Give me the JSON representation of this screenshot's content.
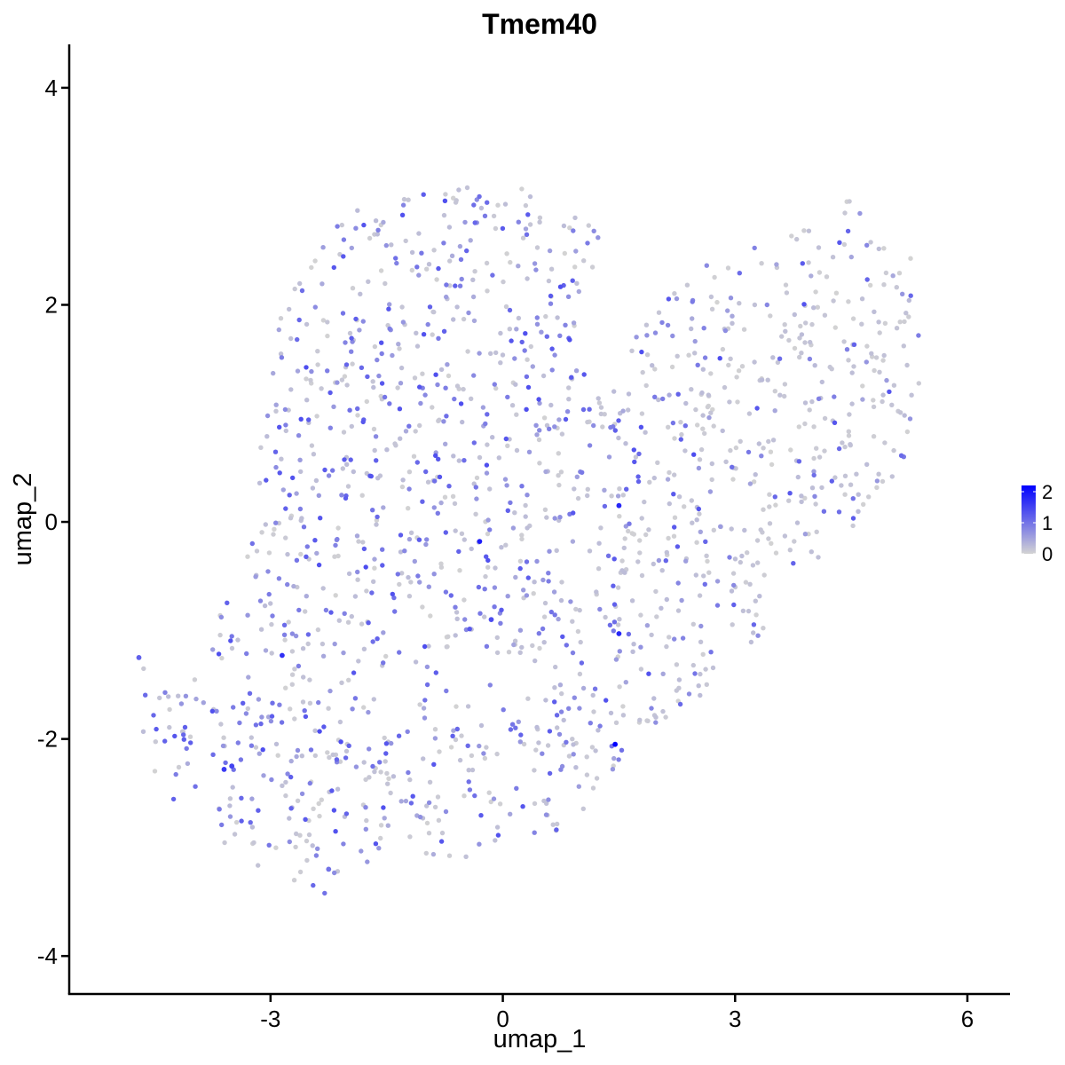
{
  "chart_data": {
    "type": "scatter",
    "title": "Tmem40",
    "xlabel": "umap_1",
    "ylabel": "umap_2",
    "xlim": [
      -5.6,
      6.55
    ],
    "ylim": [
      -4.35,
      4.4
    ],
    "x_ticks": [
      -3,
      0,
      3,
      6
    ],
    "y_ticks": [
      -4,
      -2,
      0,
      2,
      4
    ],
    "grid": false,
    "legend": {
      "position": "right",
      "min": 0,
      "max": 2.2,
      "ticks": [
        0,
        1,
        2
      ],
      "color_low": "#d3d3d3",
      "color_high": "#0000ff"
    },
    "highlighted_points": [
      {
        "x": 1.45,
        "y": -2.05,
        "value": 2.2
      },
      {
        "x": -0.3,
        "y": -0.18,
        "value": 1.9
      },
      {
        "x": 1.5,
        "y": 0.15,
        "value": 1.8
      },
      {
        "x": 1.5,
        "y": -1.03,
        "value": 1.8
      },
      {
        "x": -2.85,
        "y": -1.23,
        "value": 1.7
      },
      {
        "x": -3.6,
        "y": -2.28,
        "value": 1.6
      },
      {
        "x": -3.5,
        "y": -2.25,
        "value": 1.5
      },
      {
        "x": -0.15,
        "y": -0.9,
        "value": 1.4
      },
      {
        "x": -4.7,
        "y": -1.25,
        "value": 1.2
      },
      {
        "x": -2.25,
        "y": -3.2,
        "value": 1.0
      }
    ],
    "cloud": {
      "n_points": 1650,
      "polygon": [
        [
          -4.95,
          -1.15
        ],
        [
          -4.3,
          -1.55
        ],
        [
          -3.75,
          -1.05
        ],
        [
          -3.35,
          -0.25
        ],
        [
          -3.15,
          0.55
        ],
        [
          -3.0,
          1.45
        ],
        [
          -2.85,
          2.05
        ],
        [
          -2.35,
          2.6
        ],
        [
          -1.9,
          2.9
        ],
        [
          -0.9,
          3.05
        ],
        [
          0.2,
          3.15
        ],
        [
          0.95,
          2.85
        ],
        [
          1.25,
          2.75
        ],
        [
          1.25,
          2.2
        ],
        [
          1.05,
          1.65
        ],
        [
          1.5,
          1.55
        ],
        [
          2.05,
          2.0
        ],
        [
          2.55,
          2.4
        ],
        [
          3.6,
          2.6
        ],
        [
          4.35,
          3.05
        ],
        [
          5.3,
          2.45
        ],
        [
          5.5,
          1.7
        ],
        [
          5.3,
          0.8
        ],
        [
          5.0,
          0.3
        ],
        [
          4.5,
          -0.2
        ],
        [
          3.9,
          -0.4
        ],
        [
          3.5,
          -0.6
        ],
        [
          3.35,
          -1.05
        ],
        [
          2.9,
          -1.25
        ],
        [
          2.5,
          -1.7
        ],
        [
          2.1,
          -1.85
        ],
        [
          1.85,
          -2.0
        ],
        [
          1.0,
          -2.7
        ],
        [
          0.5,
          -3.0
        ],
        [
          -0.5,
          -3.1
        ],
        [
          -1.6,
          -3.05
        ],
        [
          -2.1,
          -3.45
        ],
        [
          -2.55,
          -3.5
        ],
        [
          -3.3,
          -3.1
        ],
        [
          -4.1,
          -2.8
        ],
        [
          -4.5,
          -2.3
        ],
        [
          -4.75,
          -1.75
        ]
      ]
    }
  }
}
